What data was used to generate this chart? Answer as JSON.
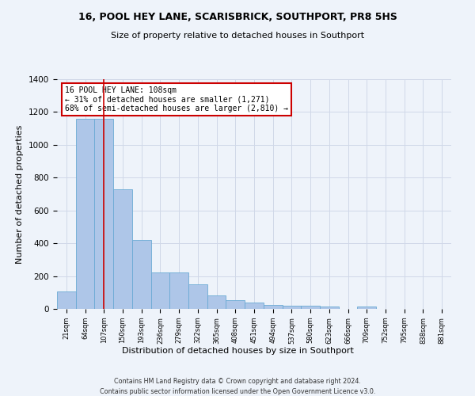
{
  "title1": "16, POOL HEY LANE, SCARISBRICK, SOUTHPORT, PR8 5HS",
  "title2": "Size of property relative to detached houses in Southport",
  "xlabel": "Distribution of detached houses by size in Southport",
  "ylabel": "Number of detached properties",
  "footer1": "Contains HM Land Registry data © Crown copyright and database right 2024.",
  "footer2": "Contains public sector information licensed under the Open Government Licence v3.0.",
  "annotation_line1": "16 POOL HEY LANE: 108sqm",
  "annotation_line2": "← 31% of detached houses are smaller (1,271)",
  "annotation_line3": "68% of semi-detached houses are larger (2,810) →",
  "bar_labels": [
    "21sqm",
    "64sqm",
    "107sqm",
    "150sqm",
    "193sqm",
    "236sqm",
    "279sqm",
    "322sqm",
    "365sqm",
    "408sqm",
    "451sqm",
    "494sqm",
    "537sqm",
    "580sqm",
    "623sqm",
    "666sqm",
    "709sqm",
    "752sqm",
    "795sqm",
    "838sqm",
    "881sqm"
  ],
  "bar_values": [
    107,
    1160,
    1160,
    730,
    420,
    220,
    220,
    150,
    80,
    55,
    40,
    25,
    20,
    20,
    15,
    0,
    15,
    0,
    0,
    0,
    0
  ],
  "bar_color": "#aec6e8",
  "bar_edgecolor": "#6aaad4",
  "vline_x": 2,
  "vline_color": "#cc0000",
  "annotation_box_edgecolor": "#cc0000",
  "annotation_box_facecolor": "#ffffff",
  "grid_color": "#d0d8e8",
  "bg_color": "#eef3fa",
  "ylim": [
    0,
    1400
  ],
  "yticks": [
    0,
    200,
    400,
    600,
    800,
    1000,
    1200,
    1400
  ]
}
